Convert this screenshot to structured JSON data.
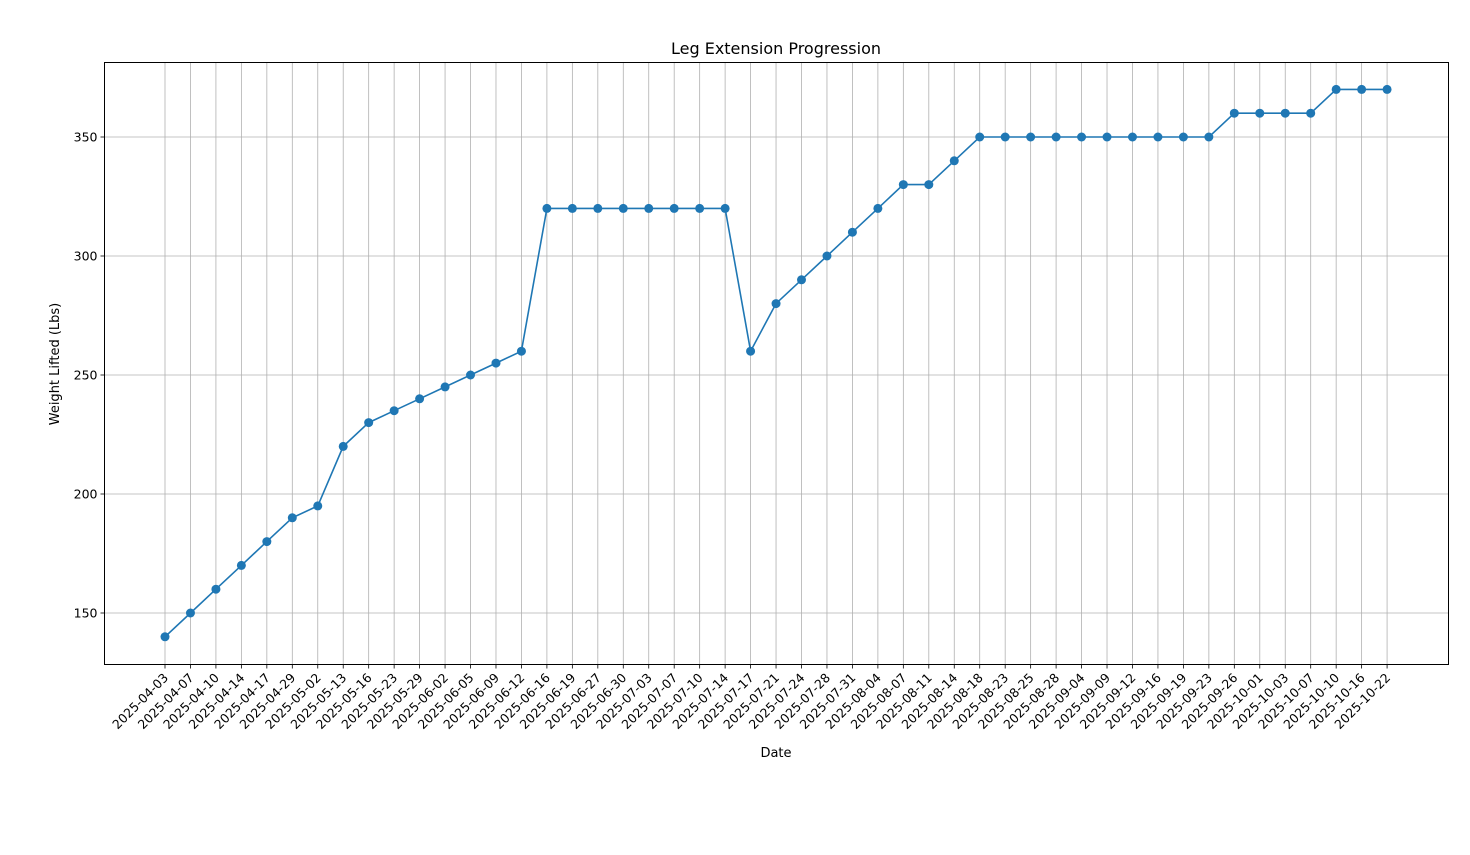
{
  "chart_data": {
    "type": "line",
    "title": "Leg Extension Progression",
    "xlabel": "Date",
    "ylabel": "Weight Lifted (Lbs)",
    "ylim": [
      128,
      381
    ],
    "yticks": [
      150,
      200,
      250,
      300,
      350
    ],
    "grid": true,
    "legend": null,
    "line_color": "#1f77b4",
    "marker": "circle",
    "categories": [
      "2025-04-03",
      "2025-04-07",
      "2025-04-10",
      "2025-04-14",
      "2025-04-17",
      "2025-04-29",
      "2025-05-02",
      "2025-05-13",
      "2025-05-16",
      "2025-05-23",
      "2025-05-29",
      "2025-06-02",
      "2025-06-05",
      "2025-06-09",
      "2025-06-12",
      "2025-06-16",
      "2025-06-19",
      "2025-06-27",
      "2025-06-30",
      "2025-07-03",
      "2025-07-07",
      "2025-07-10",
      "2025-07-14",
      "2025-07-17",
      "2025-07-21",
      "2025-07-24",
      "2025-07-28",
      "2025-07-31",
      "2025-08-04",
      "2025-08-07",
      "2025-08-11",
      "2025-08-14",
      "2025-08-18",
      "2025-08-23",
      "2025-08-25",
      "2025-08-28",
      "2025-09-04",
      "2025-09-09",
      "2025-09-12",
      "2025-09-16",
      "2025-09-19",
      "2025-09-23",
      "2025-09-26",
      "2025-10-01",
      "2025-10-03",
      "2025-10-07",
      "2025-10-10",
      "2025-10-16",
      "2025-10-22"
    ],
    "series": [
      {
        "name": "Weight Lifted (Lbs)",
        "values": [
          140,
          150,
          160,
          170,
          180,
          190,
          195,
          220,
          230,
          235,
          240,
          245,
          250,
          255,
          260,
          320,
          320,
          320,
          320,
          320,
          320,
          320,
          320,
          260,
          280,
          290,
          300,
          310,
          320,
          330,
          330,
          340,
          350,
          350,
          350,
          350,
          350,
          350,
          350,
          350,
          350,
          350,
          360,
          360,
          360,
          360,
          370,
          370,
          370
        ]
      }
    ]
  }
}
